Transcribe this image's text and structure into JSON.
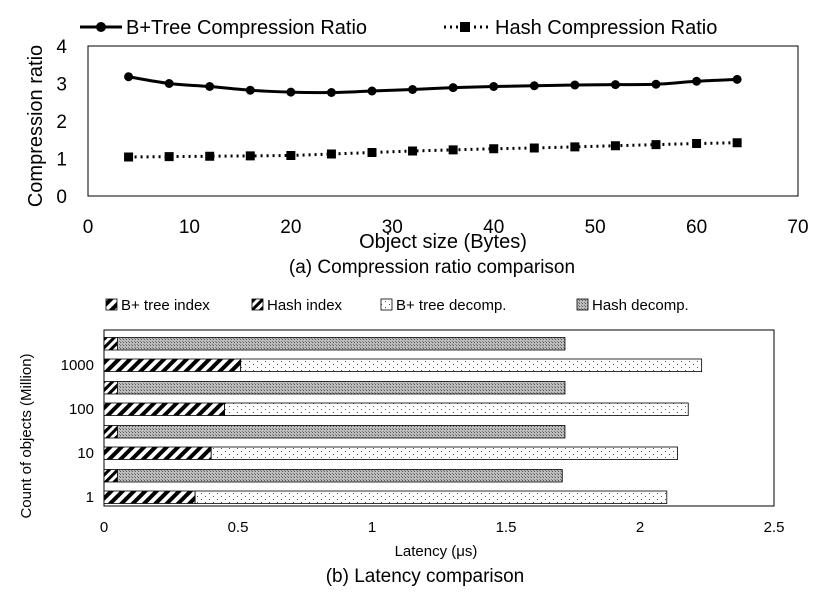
{
  "chart_data": [
    {
      "type": "line",
      "caption": "(a) Compression ratio comparison",
      "xlabel": "Object size (Bytes)",
      "ylabel": "Compression ratio",
      "xlim": [
        0,
        70
      ],
      "ylim": [
        0,
        4
      ],
      "xticks": [
        "0",
        "10",
        "20",
        "30",
        "40",
        "50",
        "60",
        "70"
      ],
      "yticks": [
        "0",
        "1",
        "2",
        "3",
        "4"
      ],
      "legend_position": "top",
      "series": [
        {
          "name": "B+Tree Compression Ratio",
          "style": "solid",
          "marker": "circle",
          "x": [
            4,
            8,
            12,
            16,
            20,
            24,
            28,
            32,
            36,
            40,
            44,
            48,
            52,
            56,
            60,
            64
          ],
          "y": [
            3.18,
            3.0,
            2.92,
            2.82,
            2.77,
            2.76,
            2.8,
            2.84,
            2.89,
            2.92,
            2.94,
            2.96,
            2.97,
            2.98,
            3.06,
            3.11
          ]
        },
        {
          "name": "Hash Compression Ratio",
          "style": "dotted",
          "marker": "square",
          "x": [
            4,
            8,
            12,
            16,
            20,
            24,
            28,
            32,
            36,
            40,
            44,
            48,
            52,
            56,
            60,
            64
          ],
          "y": [
            1.04,
            1.05,
            1.06,
            1.07,
            1.08,
            1.12,
            1.16,
            1.2,
            1.23,
            1.26,
            1.28,
            1.31,
            1.34,
            1.37,
            1.4,
            1.42
          ]
        }
      ]
    },
    {
      "type": "bar",
      "orientation": "horizontal",
      "stacked": true,
      "caption": "(b) Latency comparison",
      "xlabel": "Latency (μs)",
      "ylabel": "Count of objects (Million)",
      "xlim": [
        0,
        2.5
      ],
      "xticks": [
        "0",
        "0.5",
        "1",
        "1.5",
        "2",
        "2.5"
      ],
      "categories": [
        "1000",
        "100",
        "10",
        "1"
      ],
      "legend_position": "top",
      "legend": [
        {
          "name": "B+ tree index",
          "pattern": "diag-dense"
        },
        {
          "name": "Hash index",
          "pattern": "diag-sparse"
        },
        {
          "name": "B+ tree decomp.",
          "pattern": "dots"
        },
        {
          "name": "Hash decomp.",
          "pattern": "crosshatch"
        }
      ],
      "groups": [
        {
          "category": "1000",
          "hash": {
            "index": 0.05,
            "total": 1.72
          },
          "bptree": {
            "index": 0.51,
            "total": 2.23
          }
        },
        {
          "category": "100",
          "hash": {
            "index": 0.05,
            "total": 1.72
          },
          "bptree": {
            "index": 0.45,
            "total": 2.18
          }
        },
        {
          "category": "10",
          "hash": {
            "index": 0.05,
            "total": 1.72
          },
          "bptree": {
            "index": 0.4,
            "total": 2.14
          }
        },
        {
          "category": "1",
          "hash": {
            "index": 0.05,
            "total": 1.71
          },
          "bptree": {
            "index": 0.34,
            "total": 2.1
          }
        }
      ]
    }
  ]
}
